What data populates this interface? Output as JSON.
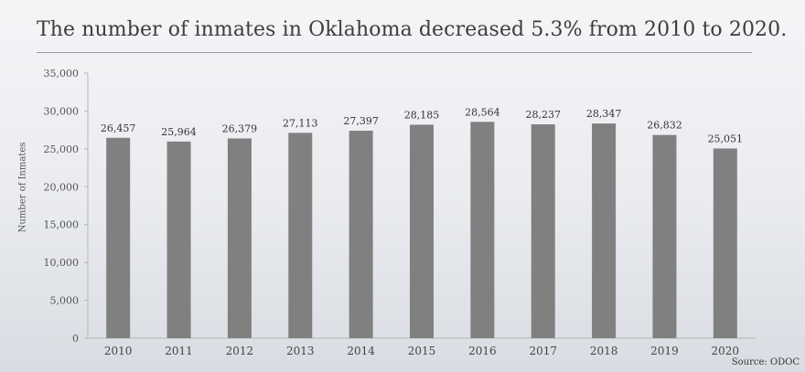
{
  "chart_data": {
    "type": "bar",
    "title": "The number of inmates in Oklahoma decreased 5.3% from 2010 to 2020.",
    "xlabel": "",
    "ylabel": "Number of Inmates",
    "categories": [
      "2010",
      "2011",
      "2012",
      "2013",
      "2014",
      "2015",
      "2016",
      "2017",
      "2018",
      "2019",
      "2020"
    ],
    "values": [
      26457,
      25964,
      26379,
      27113,
      27397,
      28185,
      28564,
      28237,
      28347,
      26832,
      25051
    ],
    "data_labels": [
      "26,457",
      "25,964",
      "26,379",
      "27,113",
      "27,397",
      "28,185",
      "28,564",
      "28,237",
      "28,347",
      "26,832",
      "25,051"
    ],
    "ylim": [
      0,
      35000
    ],
    "yticks": [
      "0",
      "5,000",
      "10,000",
      "15,000",
      "20,000",
      "25,000",
      "30,000",
      "35,000"
    ],
    "grid": false,
    "bar_color": "#808080"
  },
  "source": "Source: ODOC"
}
